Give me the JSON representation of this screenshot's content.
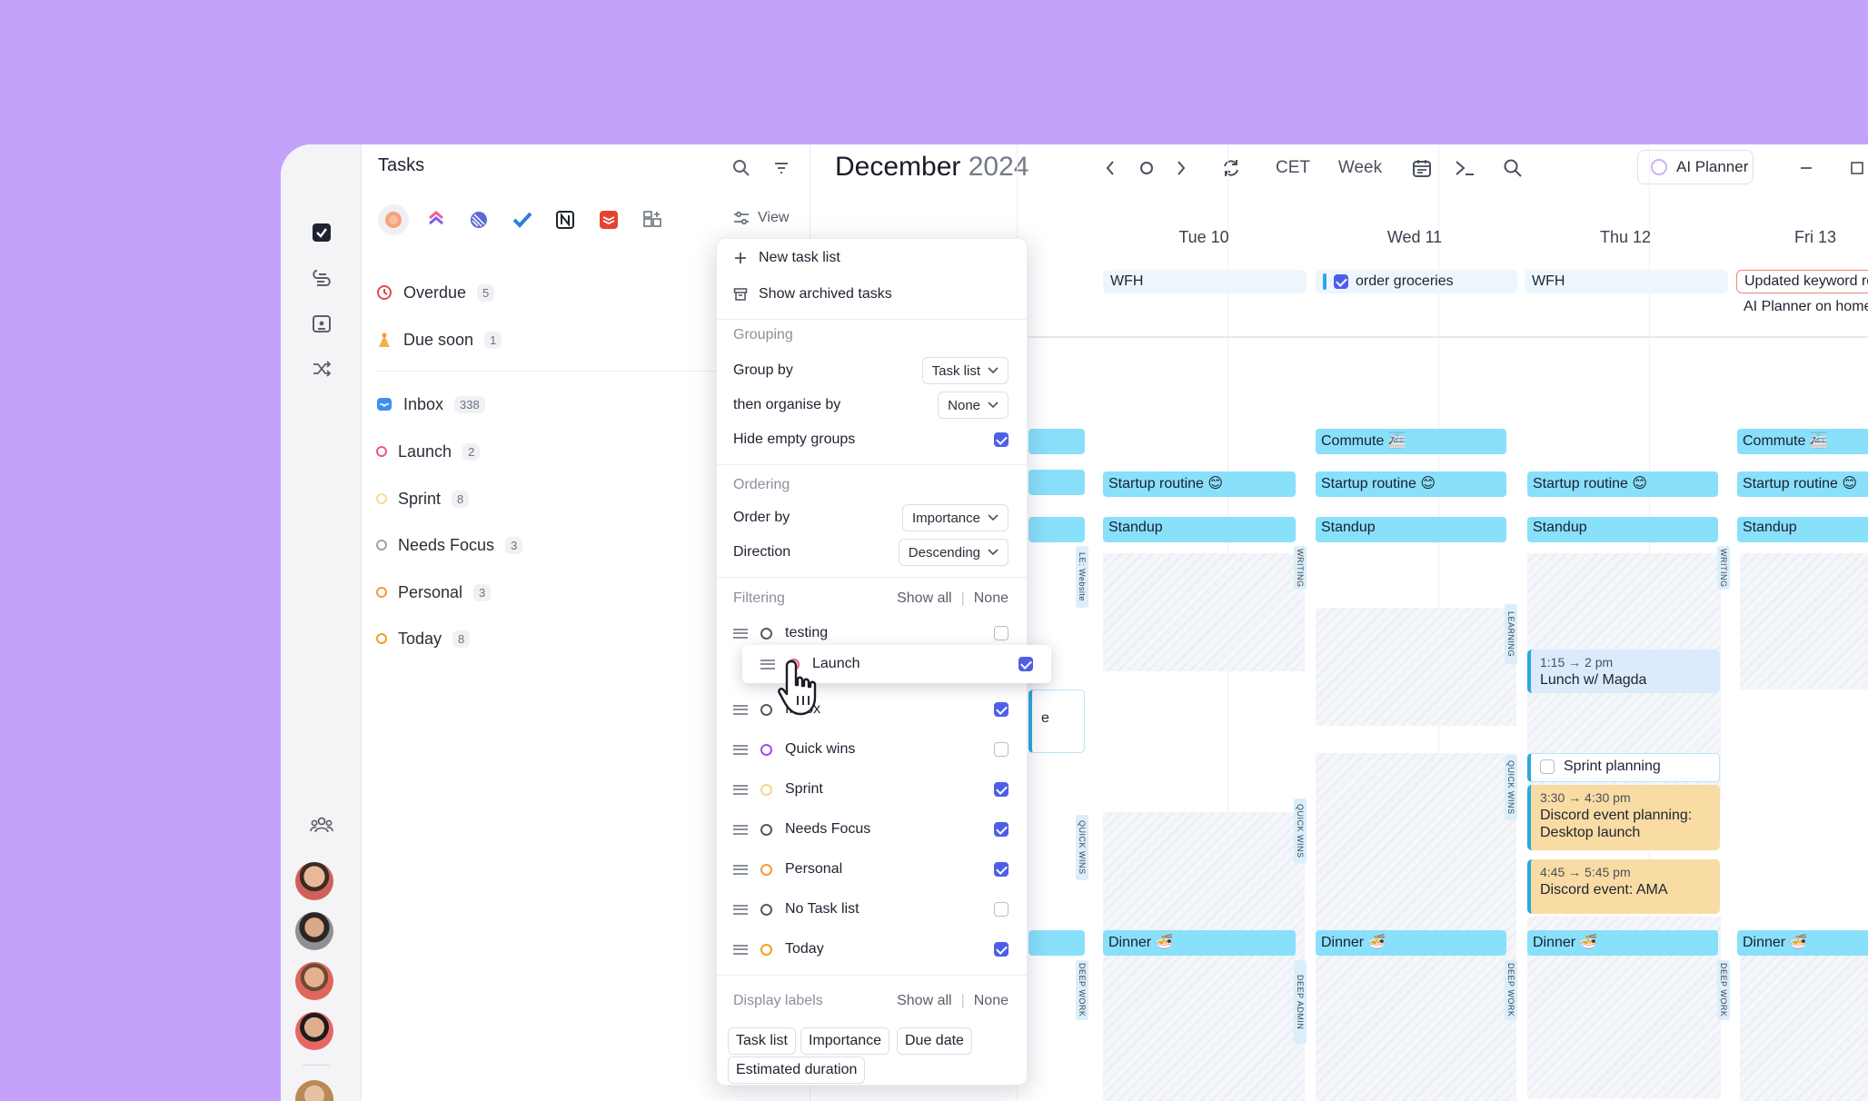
{
  "rail": {
    "icons": [
      "checkbox-icon",
      "lines-icon",
      "calendar-contact-icon",
      "shuffle-icon",
      "team-icon"
    ]
  },
  "tasks_panel": {
    "title": "Tasks",
    "view_label": "View",
    "groups": [
      {
        "label": "Overdue",
        "count": "5"
      },
      {
        "label": "Due soon",
        "count": "1"
      }
    ],
    "lists": [
      {
        "label": "Inbox",
        "count": "338"
      },
      {
        "label": "Launch",
        "count": "2"
      },
      {
        "label": "Sprint",
        "count": "8"
      },
      {
        "label": "Needs Focus",
        "count": "3"
      },
      {
        "label": "Personal",
        "count": "3"
      },
      {
        "label": "Today",
        "count": "8"
      }
    ]
  },
  "calendar": {
    "month": "December",
    "year": "2024",
    "timezone": "CET",
    "view": "Week",
    "ai_planner": "AI Planner",
    "days": [
      "Tue 10",
      "Wed 11",
      "Thu 12",
      "Fri 13"
    ],
    "allday": {
      "wfh": "WFH",
      "groceries": "order groceries",
      "keyword": "Updated keyword res",
      "homepage": "AI Planner on homep"
    },
    "events": {
      "commute": "Commute 🚈",
      "startup": "Startup routine 😊",
      "standup": "Standup",
      "dinner": "Dinner 🍜",
      "lunch_time": "1:15 → 2 pm",
      "lunch": "Lunch w/ Magda",
      "sprint_planning": "Sprint planning",
      "discord1_time": "3:30 → 4:30 pm",
      "discord1": "Discord event planning: Desktop launch",
      "discord2_time": "4:45 → 5:45 pm",
      "discord2": "Discord event: AMA",
      "partial_e": "e"
    },
    "labels": {
      "writing": "WRITING",
      "learning": "LEARNING",
      "quick_wins": "QUICK WINS",
      "deep_work": "DEEP WORK",
      "deep_admin": "DEEP ADMIN",
      "le_website": "LE: Website"
    }
  },
  "menu": {
    "new_task_list": "New task list",
    "show_archived": "Show archived tasks",
    "grouping_header": "Grouping",
    "group_by_label": "Group by",
    "group_by_value": "Task list",
    "then_label": "then organise by",
    "then_value": "None",
    "hide_empty_label": "Hide empty groups",
    "ordering_header": "Ordering",
    "order_by_label": "Order by",
    "order_by_value": "Importance",
    "direction_label": "Direction",
    "direction_value": "Descending",
    "filtering_header": "Filtering",
    "show_all": "Show all",
    "sep": "|",
    "none": "None",
    "filters": [
      {
        "label": "testing",
        "checked": false,
        "color": "#555a66"
      },
      {
        "label": "Inbox",
        "checked": true,
        "color": "#555a66"
      },
      {
        "label": "Quick wins",
        "checked": false,
        "color": "#a34ee8"
      },
      {
        "label": "Sprint",
        "checked": true,
        "color": "#f6d58a"
      },
      {
        "label": "Needs Focus",
        "checked": true,
        "color": "#555a66"
      },
      {
        "label": "Personal",
        "checked": true,
        "color": "#f29a3a"
      },
      {
        "label": "No Task list",
        "checked": false,
        "color": "#555a66"
      },
      {
        "label": "Today",
        "checked": true,
        "color": "#f0a028"
      }
    ],
    "dragged": {
      "label": "Launch",
      "checked": true
    },
    "display_labels_header": "Display labels",
    "chips": [
      "Task list",
      "Importance",
      "Due date",
      "Estimated duration"
    ]
  }
}
